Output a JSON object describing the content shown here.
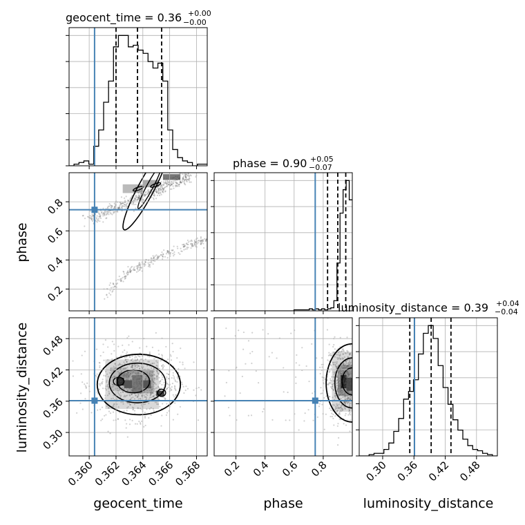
{
  "chart_data": {
    "type": "corner",
    "parameters": [
      "geocent_time",
      "phase",
      "luminosity_distance"
    ],
    "titles": [
      {
        "param": "geocent_time",
        "text": "geocent_time = 0.36",
        "plus": "+0.00",
        "minus": "−0.00"
      },
      {
        "param": "phase",
        "text": "phase = 0.90",
        "plus": "+0.05",
        "minus": "−0.07"
      },
      {
        "param": "luminosity_distance",
        "text": "luminosity_distance = 0.39",
        "plus": "+0.04",
        "minus": "−0.04"
      }
    ],
    "ranges": {
      "geocent_time": [
        0.3585,
        0.3688
      ],
      "phase": [
        0.05,
        1.0
      ],
      "luminosity_distance": [
        0.255,
        0.52
      ]
    },
    "ticks": {
      "geocent_time": {
        "values": [
          0.36,
          0.362,
          0.364,
          0.366,
          0.368
        ],
        "labels": [
          "0.360",
          "0.362",
          "0.364",
          "0.366",
          "0.368"
        ]
      },
      "phase": {
        "values": [
          0.2,
          0.4,
          0.6,
          0.8
        ],
        "labels": [
          "0.2",
          "0.4",
          "0.6",
          "0.8"
        ]
      },
      "luminosity_distance": {
        "values": [
          0.3,
          0.36,
          0.42,
          0.48
        ],
        "labels": [
          "0.30",
          "0.36",
          "0.42",
          "0.48"
        ]
      }
    },
    "truths": {
      "geocent_time": 0.3604,
      "phase": 0.745,
      "luminosity_distance": 0.361
    },
    "quantiles": {
      "geocent_time": [
        0.362,
        0.3636,
        0.3654
      ],
      "phase": [
        0.83,
        0.9,
        0.955
      ],
      "luminosity_distance": [
        0.352,
        0.393,
        0.431
      ]
    },
    "histograms": {
      "geocent_time": {
        "edges_range": [
          0.3585,
          0.3688
        ],
        "counts": [
          0,
          1,
          2,
          3,
          1,
          12,
          22,
          39,
          52,
          73,
          80,
          80,
          73,
          74,
          71,
          69,
          64,
          60,
          63,
          52,
          22,
          10,
          5,
          3,
          2,
          0,
          1,
          1
        ]
      },
      "phase": {
        "edges_range": [
          0.05,
          1.0
        ],
        "counts": [
          0,
          0,
          0,
          0,
          0,
          0,
          0,
          0,
          0,
          0,
          0,
          0,
          0,
          0,
          0,
          0,
          0,
          0,
          0,
          0,
          0,
          0,
          0,
          0,
          0,
          0,
          1,
          1,
          1,
          1,
          1,
          2,
          1,
          2,
          1,
          2,
          1,
          2,
          3,
          10,
          47,
          96,
          119,
          128,
          109
        ]
      },
      "luminosity_distance": {
        "edges_range": [
          0.255,
          0.52
        ],
        "counts": [
          0,
          0,
          1,
          2,
          2,
          5,
          10,
          19,
          29,
          44,
          50,
          59,
          79,
          95,
          101,
          91,
          70,
          53,
          40,
          28,
          20,
          13,
          8,
          5,
          4,
          2,
          1,
          0
        ]
      }
    },
    "grid": true,
    "truth_color": "#4682b4"
  }
}
